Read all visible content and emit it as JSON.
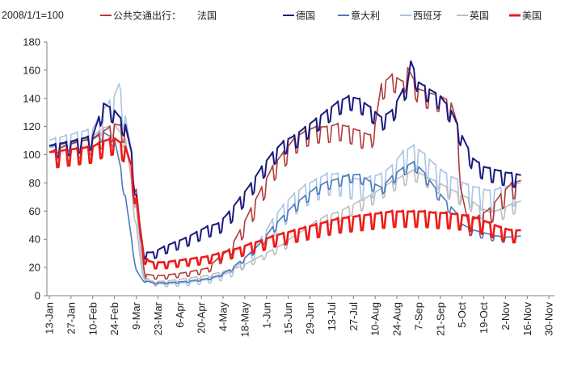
{
  "chart_data": {
    "type": "line",
    "title": "",
    "unit_label": "2008/1/1=100",
    "legend_prefix": "公共交通出行：",
    "xlabel": "",
    "ylabel": "",
    "ylim": [
      0,
      180
    ],
    "yticks": [
      0,
      20,
      40,
      60,
      80,
      100,
      120,
      140,
      160,
      180
    ],
    "x_categories": [
      "13-Jan",
      "27-Jan",
      "10-Feb",
      "24-Feb",
      "9-Mar",
      "23-Mar",
      "6-Apr",
      "20-Apr",
      "4-May",
      "18-May",
      "1-Jun",
      "15-Jun",
      "29-Jun",
      "13-Jul",
      "27-Jul",
      "10-Aug",
      "24-Aug",
      "7-Sep",
      "21-Sep",
      "5-Oct",
      "19-Oct",
      "2-Nov",
      "16-Nov",
      "30-Nov"
    ],
    "x_note": "x values are day offsets from 13-Jan (2020), one tick every 14 days",
    "series": [
      {
        "name": "法国",
        "color": "#b23a3a",
        "width": 1.6,
        "amplitude": 6,
        "points": [
          [
            0,
            100
          ],
          [
            14,
            106
          ],
          [
            28,
            110
          ],
          [
            42,
            120
          ],
          [
            49,
            118
          ],
          [
            53,
            100
          ],
          [
            57,
            65
          ],
          [
            60,
            30
          ],
          [
            62,
            15
          ],
          [
            67,
            14
          ],
          [
            74,
            14
          ],
          [
            88,
            16
          ],
          [
            102,
            19
          ],
          [
            109,
            26
          ],
          [
            116,
            32
          ],
          [
            123,
            45
          ],
          [
            130,
            60
          ],
          [
            137,
            75
          ],
          [
            144,
            90
          ],
          [
            151,
            100
          ],
          [
            158,
            110
          ],
          [
            165,
            115
          ],
          [
            172,
            118
          ],
          [
            179,
            118
          ],
          [
            186,
            120
          ],
          [
            193,
            118
          ],
          [
            200,
            115
          ],
          [
            207,
            112
          ],
          [
            210,
            120
          ],
          [
            214,
            148
          ],
          [
            221,
            155
          ],
          [
            228,
            150
          ],
          [
            231,
            160
          ],
          [
            238,
            145
          ],
          [
            245,
            142
          ],
          [
            252,
            140
          ],
          [
            259,
            135
          ],
          [
            263,
            120
          ],
          [
            266,
            70
          ],
          [
            270,
            50
          ],
          [
            277,
            55
          ],
          [
            284,
            60
          ],
          [
            291,
            70
          ],
          [
            298,
            78
          ],
          [
            304,
            80
          ]
        ]
      },
      {
        "name": "德国",
        "color": "#1a1a80",
        "width": 2.0,
        "amplitude": 5,
        "points": [
          [
            0,
            105
          ],
          [
            14,
            108
          ],
          [
            28,
            112
          ],
          [
            35,
            135
          ],
          [
            42,
            130
          ],
          [
            49,
            120
          ],
          [
            53,
            100
          ],
          [
            57,
            60
          ],
          [
            60,
            35
          ],
          [
            62,
            30
          ],
          [
            67,
            30
          ],
          [
            74,
            34
          ],
          [
            88,
            40
          ],
          [
            102,
            48
          ],
          [
            109,
            50
          ],
          [
            116,
            58
          ],
          [
            123,
            68
          ],
          [
            130,
            78
          ],
          [
            137,
            90
          ],
          [
            144,
            100
          ],
          [
            151,
            108
          ],
          [
            158,
            112
          ],
          [
            165,
            118
          ],
          [
            172,
            124
          ],
          [
            179,
            130
          ],
          [
            186,
            136
          ],
          [
            193,
            140
          ],
          [
            200,
            138
          ],
          [
            207,
            132
          ],
          [
            214,
            125
          ],
          [
            221,
            130
          ],
          [
            228,
            145
          ],
          [
            231,
            150
          ],
          [
            233,
            165
          ],
          [
            238,
            150
          ],
          [
            245,
            145
          ],
          [
            252,
            140
          ],
          [
            259,
            130
          ],
          [
            266,
            112
          ],
          [
            273,
            96
          ],
          [
            280,
            90
          ],
          [
            287,
            88
          ],
          [
            294,
            86
          ],
          [
            300,
            85
          ],
          [
            304,
            84
          ]
        ]
      },
      {
        "name": "意大利",
        "color": "#4a7ab8",
        "width": 1.6,
        "amplitude": 3,
        "points": [
          [
            0,
            105
          ],
          [
            14,
            108
          ],
          [
            28,
            110
          ],
          [
            35,
            115
          ],
          [
            42,
            110
          ],
          [
            46,
            90
          ],
          [
            49,
            70
          ],
          [
            53,
            40
          ],
          [
            56,
            18
          ],
          [
            60,
            11
          ],
          [
            67,
            9
          ],
          [
            74,
            9
          ],
          [
            88,
            10
          ],
          [
            102,
            12
          ],
          [
            109,
            14
          ],
          [
            116,
            18
          ],
          [
            123,
            24
          ],
          [
            130,
            30
          ],
          [
            137,
            38
          ],
          [
            144,
            48
          ],
          [
            151,
            56
          ],
          [
            158,
            64
          ],
          [
            165,
            70
          ],
          [
            172,
            76
          ],
          [
            179,
            80
          ],
          [
            186,
            82
          ],
          [
            193,
            85
          ],
          [
            200,
            85
          ],
          [
            207,
            80
          ],
          [
            214,
            76
          ],
          [
            221,
            84
          ],
          [
            228,
            90
          ],
          [
            235,
            94
          ],
          [
            242,
            86
          ],
          [
            249,
            75
          ],
          [
            256,
            66
          ],
          [
            263,
            57
          ],
          [
            266,
            50
          ],
          [
            273,
            46
          ],
          [
            280,
            44
          ],
          [
            287,
            42
          ],
          [
            294,
            41
          ],
          [
            300,
            41
          ],
          [
            304,
            42
          ]
        ]
      },
      {
        "name": "西班牙",
        "color": "#a9c4e6",
        "width": 1.6,
        "amplitude": 8,
        "points": [
          [
            0,
            108
          ],
          [
            14,
            112
          ],
          [
            28,
            116
          ],
          [
            35,
            130
          ],
          [
            42,
            140
          ],
          [
            45,
            148
          ],
          [
            49,
            125
          ],
          [
            53,
            100
          ],
          [
            57,
            50
          ],
          [
            60,
            20
          ],
          [
            62,
            12
          ],
          [
            67,
            9
          ],
          [
            74,
            8
          ],
          [
            88,
            9
          ],
          [
            102,
            11
          ],
          [
            109,
            13
          ],
          [
            116,
            16
          ],
          [
            123,
            22
          ],
          [
            130,
            30
          ],
          [
            137,
            40
          ],
          [
            144,
            52
          ],
          [
            151,
            62
          ],
          [
            158,
            70
          ],
          [
            165,
            76
          ],
          [
            172,
            80
          ],
          [
            179,
            84
          ],
          [
            186,
            84
          ],
          [
            193,
            82
          ],
          [
            200,
            80
          ],
          [
            207,
            82
          ],
          [
            214,
            84
          ],
          [
            221,
            90
          ],
          [
            228,
            100
          ],
          [
            235,
            104
          ],
          [
            242,
            98
          ],
          [
            249,
            90
          ],
          [
            256,
            84
          ],
          [
            263,
            80
          ],
          [
            270,
            76
          ],
          [
            277,
            74
          ],
          [
            284,
            72
          ],
          [
            291,
            74
          ],
          [
            298,
            76
          ],
          [
            304,
            78
          ]
        ]
      },
      {
        "name": "英国",
        "color": "#bdbdbd",
        "width": 1.6,
        "amplitude": 4,
        "points": [
          [
            0,
            104
          ],
          [
            14,
            106
          ],
          [
            28,
            112
          ],
          [
            35,
            118
          ],
          [
            42,
            120
          ],
          [
            49,
            110
          ],
          [
            53,
            80
          ],
          [
            57,
            40
          ],
          [
            60,
            15
          ],
          [
            64,
            11
          ],
          [
            67,
            10
          ],
          [
            74,
            10
          ],
          [
            88,
            12
          ],
          [
            102,
            14
          ],
          [
            109,
            16
          ],
          [
            116,
            18
          ],
          [
            123,
            20
          ],
          [
            130,
            24
          ],
          [
            137,
            28
          ],
          [
            144,
            32
          ],
          [
            151,
            36
          ],
          [
            158,
            42
          ],
          [
            165,
            46
          ],
          [
            172,
            52
          ],
          [
            179,
            56
          ],
          [
            186,
            58
          ],
          [
            193,
            62
          ],
          [
            200,
            66
          ],
          [
            207,
            70
          ],
          [
            214,
            75
          ],
          [
            221,
            80
          ],
          [
            228,
            84
          ],
          [
            235,
            88
          ],
          [
            242,
            84
          ],
          [
            249,
            80
          ],
          [
            256,
            76
          ],
          [
            263,
            72
          ],
          [
            270,
            68
          ],
          [
            277,
            62
          ],
          [
            284,
            58
          ],
          [
            291,
            60
          ],
          [
            298,
            64
          ],
          [
            304,
            66
          ]
        ]
      },
      {
        "name": "美国",
        "color": "#ee1c1c",
        "width": 2.6,
        "amplitude": 6,
        "points": [
          [
            0,
            100
          ],
          [
            14,
            102
          ],
          [
            28,
            104
          ],
          [
            35,
            108
          ],
          [
            42,
            110
          ],
          [
            49,
            104
          ],
          [
            53,
            90
          ],
          [
            57,
            60
          ],
          [
            59,
            40
          ],
          [
            61,
            28
          ],
          [
            64,
            24
          ],
          [
            67,
            23
          ],
          [
            74,
            23
          ],
          [
            88,
            25
          ],
          [
            102,
            27
          ],
          [
            109,
            29
          ],
          [
            116,
            31
          ],
          [
            123,
            33
          ],
          [
            130,
            36
          ],
          [
            137,
            38
          ],
          [
            144,
            41
          ],
          [
            151,
            43
          ],
          [
            158,
            45
          ],
          [
            165,
            47
          ],
          [
            172,
            49
          ],
          [
            179,
            51
          ],
          [
            186,
            53
          ],
          [
            193,
            54
          ],
          [
            200,
            55
          ],
          [
            207,
            56
          ],
          [
            214,
            57
          ],
          [
            221,
            58
          ],
          [
            228,
            58
          ],
          [
            235,
            58
          ],
          [
            242,
            58
          ],
          [
            249,
            57
          ],
          [
            256,
            57
          ],
          [
            263,
            56
          ],
          [
            270,
            55
          ],
          [
            277,
            53
          ],
          [
            284,
            50
          ],
          [
            291,
            47
          ],
          [
            298,
            45
          ],
          [
            304,
            45
          ]
        ]
      }
    ]
  }
}
